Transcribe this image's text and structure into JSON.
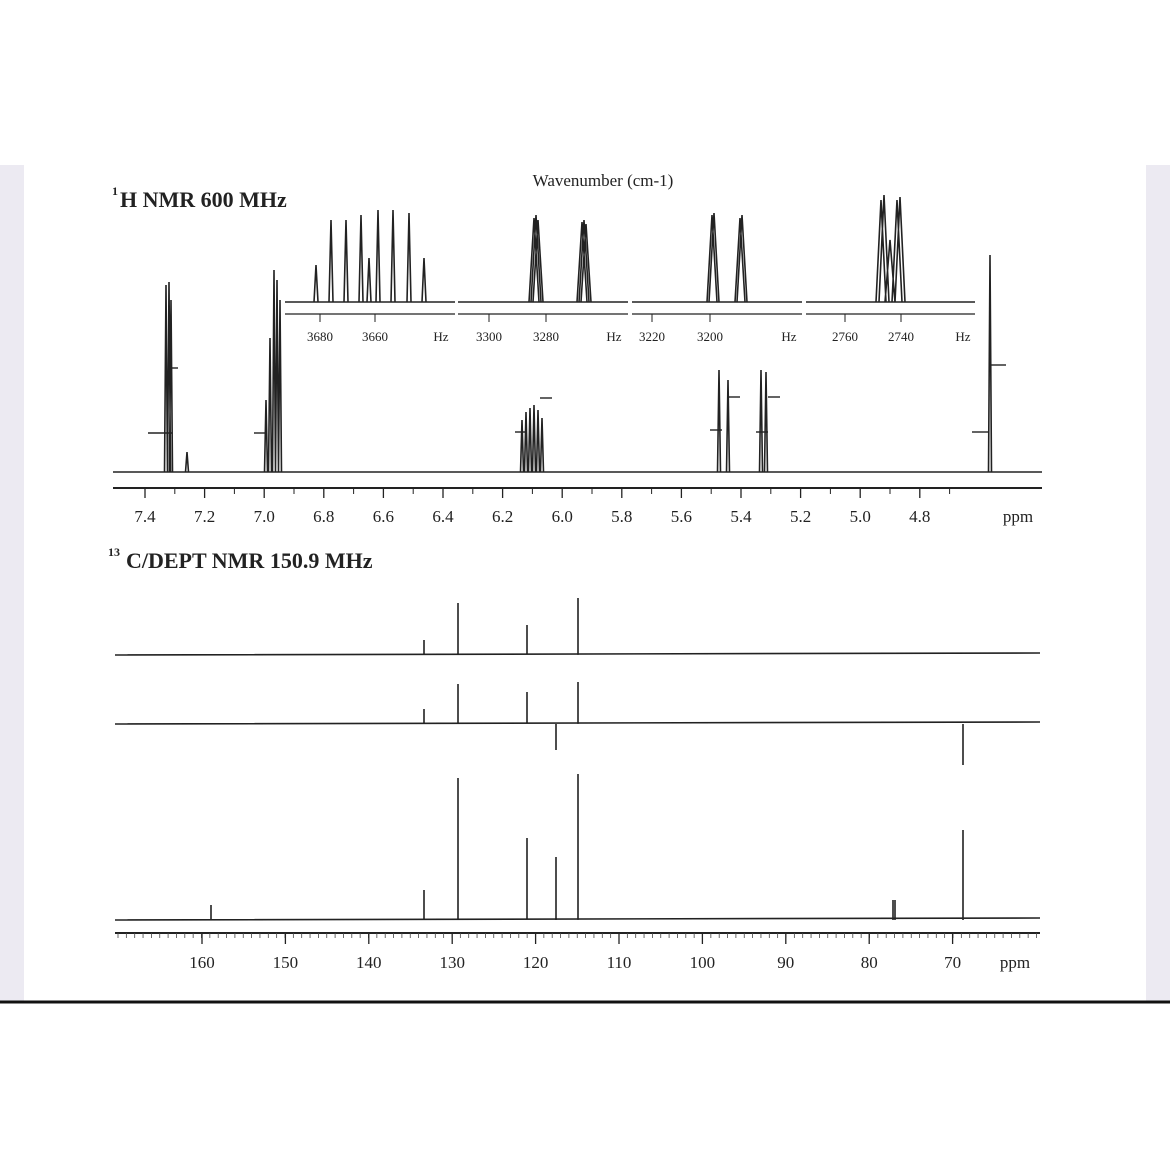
{
  "h_nmr": {
    "superscript": "1",
    "title": "H NMR 600 MHz",
    "inset_title": "Wavenumber (cm-1)",
    "insets": [
      {
        "ticks": [
          "3680",
          "3660"
        ],
        "unit": "Hz"
      },
      {
        "ticks": [
          "3300",
          "3280"
        ],
        "unit": "Hz"
      },
      {
        "ticks": [
          "3220",
          "3200"
        ],
        "unit": "Hz"
      },
      {
        "ticks": [
          "2760",
          "2740"
        ],
        "unit": "Hz"
      }
    ],
    "axis_ticks": [
      "7.4",
      "7.2",
      "7.0",
      "6.8",
      "6.6",
      "6.4",
      "6.2",
      "6.0",
      "5.8",
      "5.6",
      "5.4",
      "5.2",
      "5.0",
      "4.8"
    ],
    "axis_unit": "ppm"
  },
  "c_nmr": {
    "superscript": "13",
    "title": "C/DEPT NMR 150.9 MHz",
    "axis_ticks": [
      "160",
      "150",
      "140",
      "130",
      "120",
      "110",
      "100",
      "90",
      "80",
      "70"
    ],
    "axis_unit": "ppm"
  }
}
